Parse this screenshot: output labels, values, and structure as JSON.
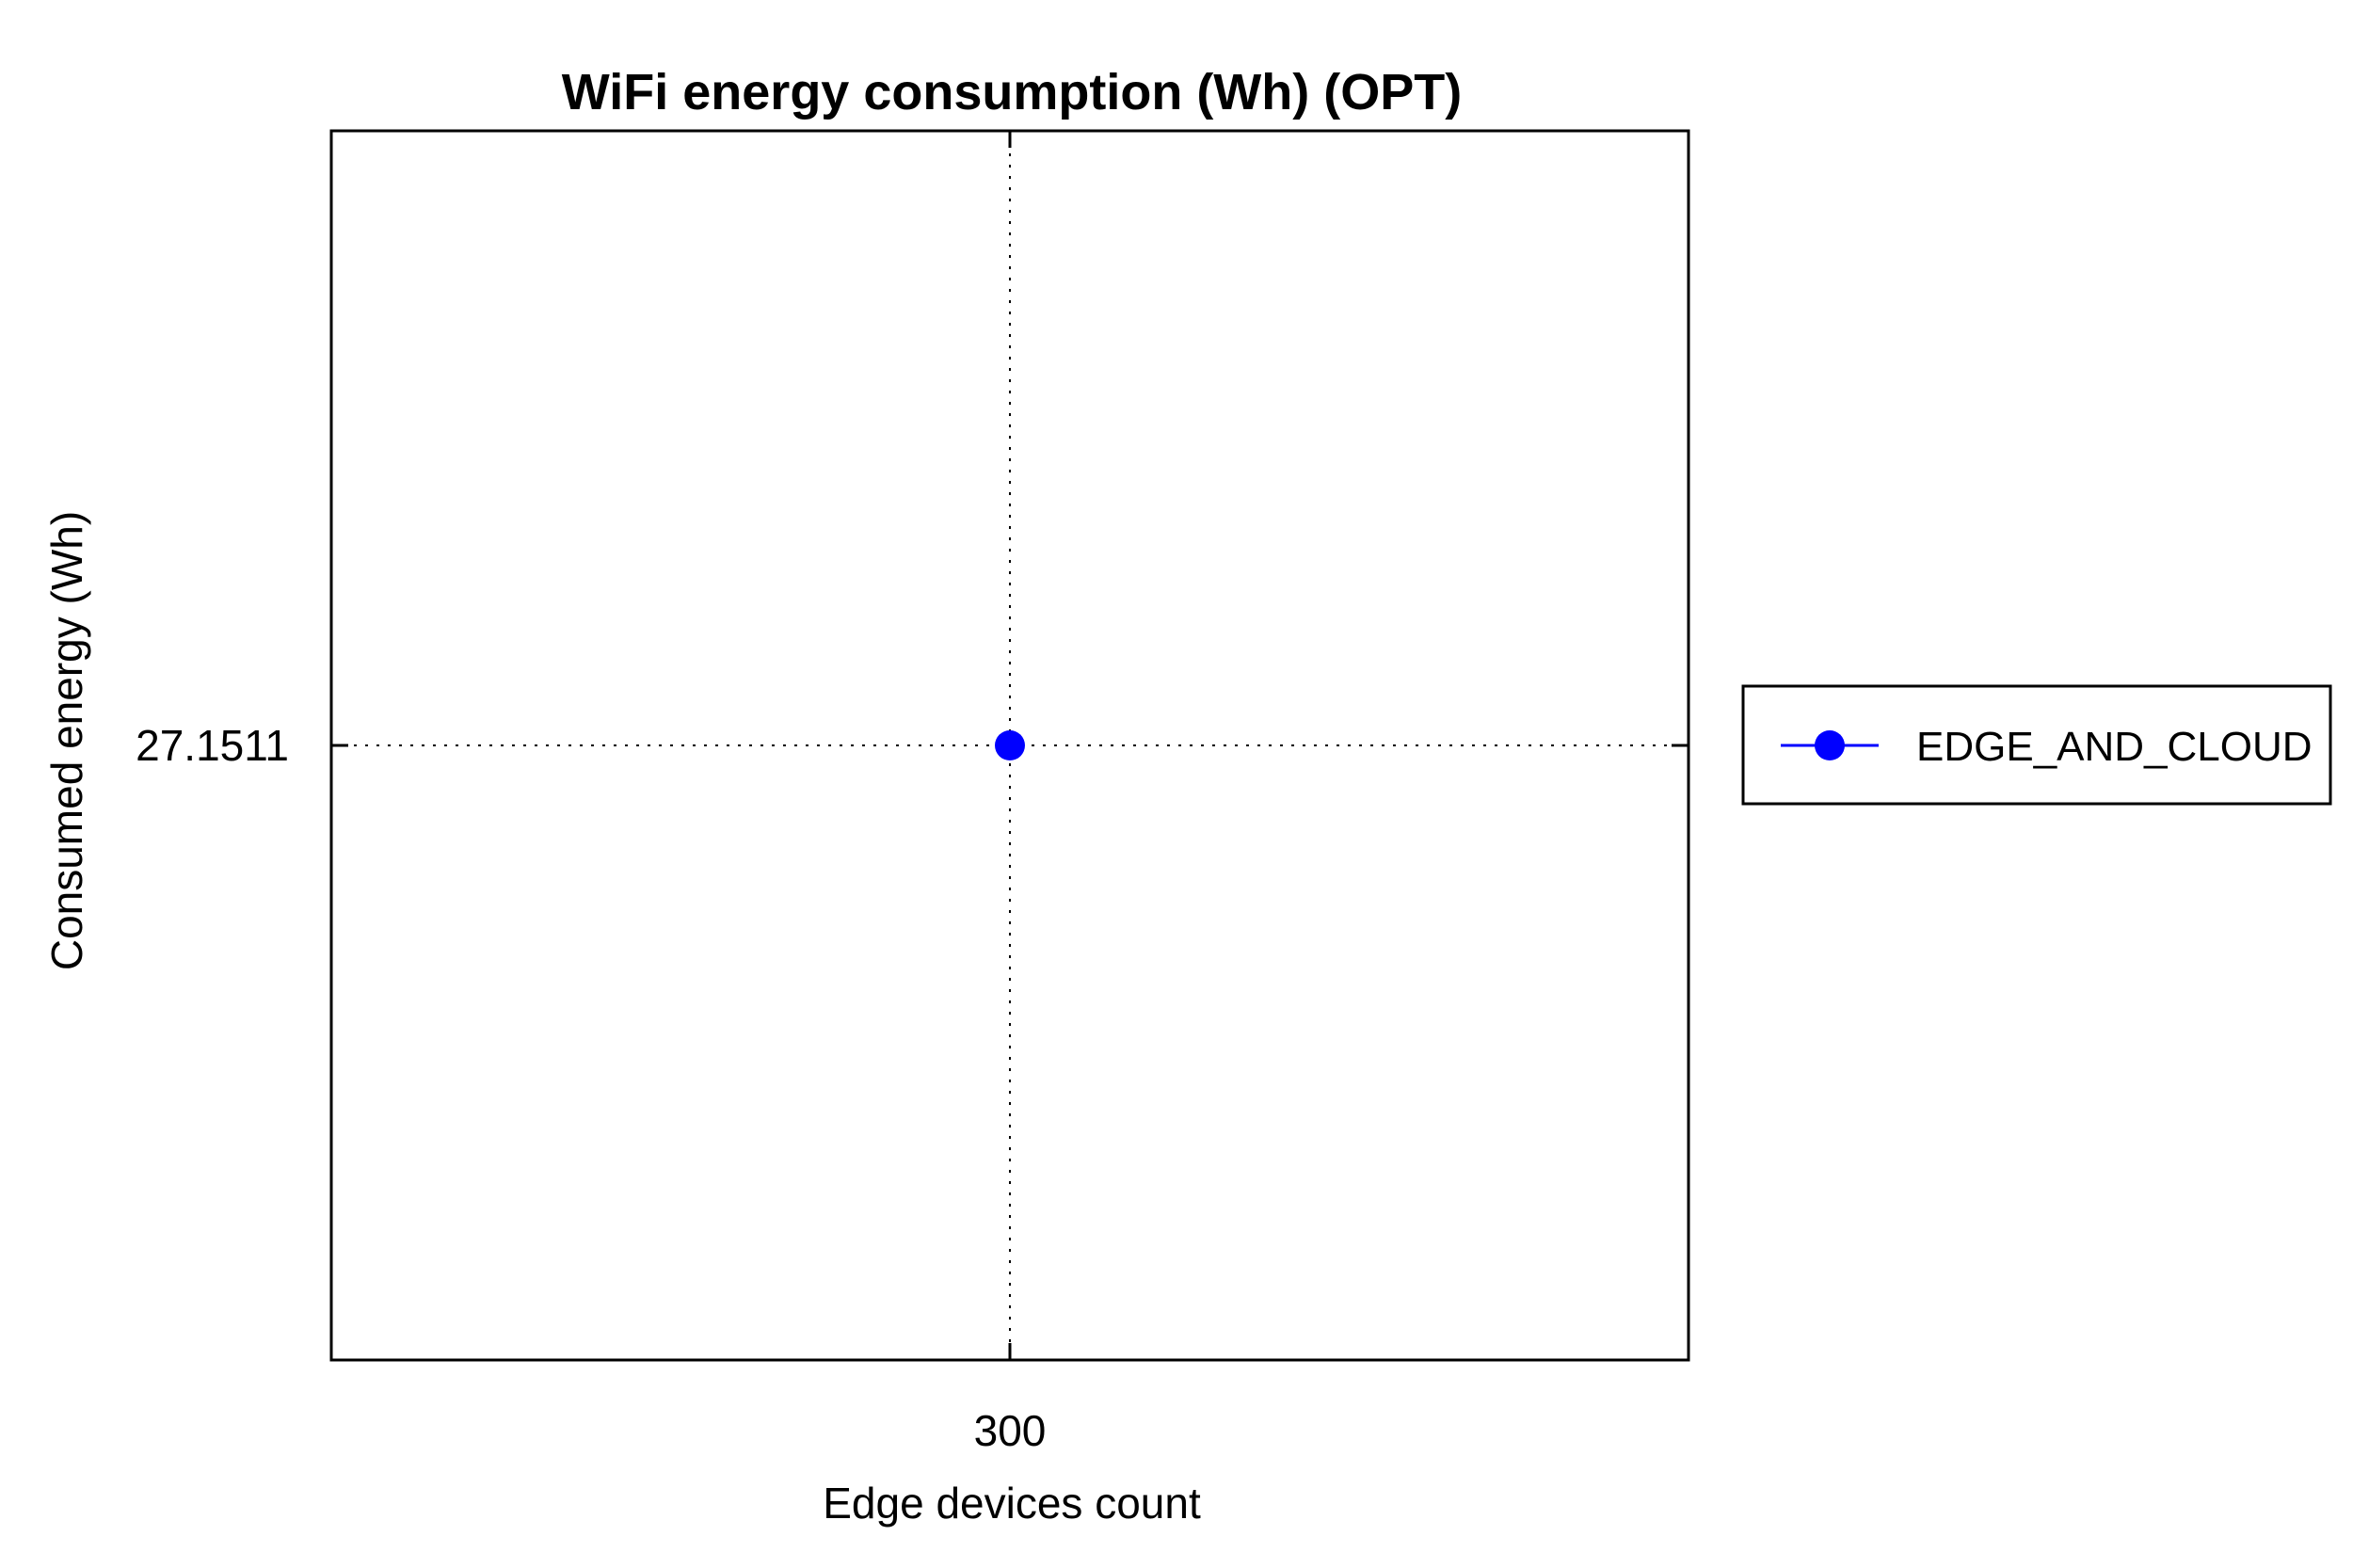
{
  "chart_data": {
    "type": "line",
    "title": "WiFi energy consumption (Wh) (OPT)",
    "xlabel": "Edge devices count",
    "ylabel": "Consumed energy (Wh)",
    "x_ticks": [
      "300"
    ],
    "y_ticks": [
      "27.1511"
    ],
    "xlim": [
      299,
      301
    ],
    "ylim": [
      26.1511,
      28.1511
    ],
    "grid": true,
    "legend_position": "right",
    "series": [
      {
        "name": "EDGE_AND_CLOUD",
        "color": "#0000ff",
        "marker": "circle",
        "x": [
          300
        ],
        "y": [
          27.1511
        ]
      }
    ]
  }
}
